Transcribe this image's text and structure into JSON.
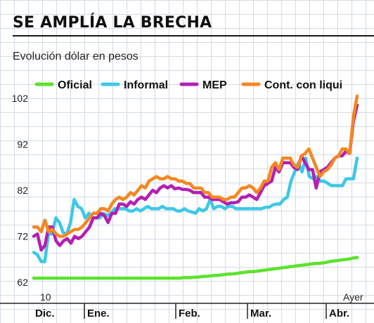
{
  "title": "SE AMPLÍA LA BRECHA",
  "subtitle": "Evolución dólar en pesos",
  "chart_data": {
    "type": "line",
    "ylim": [
      62,
      102
    ],
    "yticks": [
      62,
      72,
      82,
      92,
      102
    ],
    "x_start_label": "10",
    "x_end_label": "Ayer",
    "months": [
      "Dic.",
      "Ene.",
      "Feb.",
      "Mar.",
      "Abr."
    ],
    "legend_position": "top",
    "series": [
      {
        "name": "Oficial",
        "color": "#5be32d",
        "values": [
          62.9,
          62.9,
          62.9,
          62.9,
          62.9,
          62.9,
          62.9,
          62.9,
          62.9,
          62.9,
          62.9,
          62.9,
          62.9,
          62.9,
          62.9,
          62.9,
          62.9,
          62.9,
          62.9,
          62.9,
          62.9,
          62.9,
          62.9,
          62.9,
          62.9,
          62.9,
          62.9,
          62.9,
          62.9,
          62.9,
          62.9,
          62.9,
          62.9,
          62.9,
          62.9,
          62.9,
          62.9,
          62.9,
          62.9,
          62.9,
          62.9,
          62.9,
          62.9,
          63,
          63,
          63,
          63.1,
          63.1,
          63.2,
          63.3,
          63.3,
          63.4,
          63.5,
          63.5,
          63.6,
          63.7,
          63.8,
          63.8,
          63.9,
          64,
          64.1,
          64.2,
          64.3,
          64.3,
          64.4,
          64.5,
          64.6,
          64.7,
          64.8,
          64.9,
          65,
          65.1,
          65.2,
          65.3,
          65.4,
          65.5,
          65.6,
          65.7,
          65.8,
          65.9,
          66,
          66.1,
          66.1,
          66.2,
          66.3,
          66.5,
          66.6,
          66.7,
          66.8,
          66.9,
          67,
          67.1,
          67.3,
          67.4
        ]
      },
      {
        "name": "Informal",
        "color": "#3cc8e8",
        "values": [
          68.5,
          68,
          66.5,
          66.5,
          72.5,
          72.5,
          76,
          75,
          72.8,
          72.5,
          75,
          80,
          78.5,
          78,
          76,
          77,
          76,
          76,
          76,
          77,
          76.5,
          77,
          78,
          78,
          78,
          78,
          77.5,
          77.5,
          78,
          77.5,
          78,
          78.5,
          78,
          78,
          78,
          78.5,
          78,
          78,
          78,
          77.5,
          77.5,
          78,
          77.5,
          77.3,
          77,
          78,
          77.5,
          78,
          80,
          78,
          78.5,
          78.5,
          78,
          78.5,
          78.5,
          78,
          78,
          78,
          78,
          78,
          78,
          78,
          78,
          78.3,
          78.3,
          78.8,
          79,
          79,
          80,
          80.5,
          84,
          86,
          88,
          86,
          89,
          85,
          84.5,
          85,
          84,
          84,
          83.5,
          83,
          83,
          83,
          83,
          84.5,
          84.5,
          84.5,
          89
        ]
      },
      {
        "name": "MEP",
        "color": "#b31fb3",
        "values": [
          72,
          72.5,
          69,
          70,
          74,
          74,
          71,
          70,
          71,
          71.5,
          70.5,
          72,
          71.5,
          72,
          73,
          74,
          76,
          76,
          77,
          76.5,
          75,
          77,
          77,
          79,
          79,
          78.5,
          79.5,
          79,
          80,
          80.5,
          80,
          81,
          82,
          81.5,
          82.5,
          83,
          82.5,
          83,
          82.3,
          82.5,
          82.2,
          82.2,
          82,
          81.5,
          81.5,
          81.5,
          80.5,
          80.5,
          80,
          80,
          80,
          79.5,
          79,
          79.3,
          79.3,
          79.5,
          80.5,
          80.5,
          81,
          80.5,
          80,
          81.5,
          83,
          83.5,
          84,
          87,
          86,
          88,
          88,
          88,
          87,
          86.5,
          89.5,
          88,
          86.5,
          86.5,
          82.5,
          86,
          86.5,
          87,
          88,
          89,
          89.5,
          89.5,
          90.5,
          90,
          97,
          100.5
        ]
      },
      {
        "name": "Cont. con liqui",
        "color": "#f58720",
        "values": [
          74,
          74,
          73,
          75.5,
          73,
          73.5,
          72.5,
          72,
          72,
          72.5,
          73,
          73.5,
          73.5,
          74,
          75,
          76,
          77,
          77,
          78,
          78,
          77.5,
          79,
          80,
          80.5,
          80,
          80.5,
          81.5,
          81,
          82,
          83,
          82.5,
          84,
          84.5,
          85,
          84.5,
          84.5,
          85,
          84.5,
          84.5,
          84,
          84,
          83.5,
          83.5,
          82.5,
          82.5,
          82.5,
          81.5,
          81.5,
          80.5,
          80.5,
          80.5,
          80,
          80,
          80.5,
          80.5,
          81.5,
          82.5,
          82.5,
          83,
          82.5,
          81.5,
          82.5,
          84,
          84,
          87,
          88,
          86.5,
          89,
          89,
          89,
          87.5,
          87,
          89.5,
          90,
          91,
          89,
          87,
          85,
          86,
          86.5,
          87.5,
          89,
          89.5,
          91,
          91,
          90,
          98,
          102.5
        ]
      }
    ]
  }
}
